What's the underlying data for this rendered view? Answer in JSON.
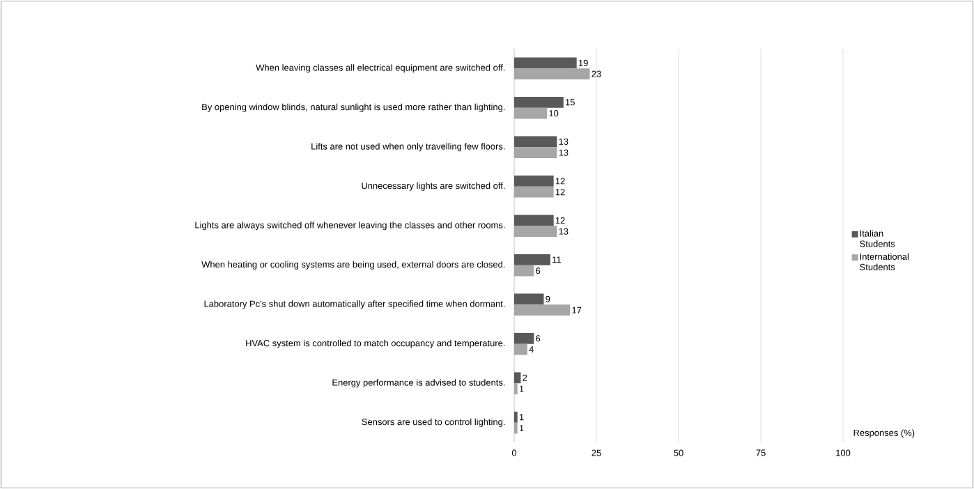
{
  "chart_data": {
    "type": "bar",
    "orientation": "horizontal",
    "xlabel": "Responses (%)",
    "categories": [
      "When leaving classes all electrical equipment are switched off.",
      "By opening window blinds, natural sunlight is used more rather than lighting.",
      "Lifts are not used when only travelling few floors.",
      "Unnecessary lights are switched off.",
      "Lights are always switched off whenever leaving the classes and other rooms.",
      "When heating or cooling systems are being used, external doors are closed.",
      "Laboratory Pc's shut down automatically after specified time when dormant.",
      "HVAC system is controlled to match occupancy and temperature.",
      "Energy performance is advised to students.",
      "Sensors are used to control lighting."
    ],
    "series": [
      {
        "name": "Italian Students",
        "color": "#595959",
        "values": [
          19,
          15,
          13,
          12,
          12,
          11,
          9,
          6,
          2,
          1
        ]
      },
      {
        "name": "International Students",
        "color": "#a6a6a6",
        "values": [
          23,
          10,
          13,
          12,
          13,
          6,
          17,
          4,
          1,
          1
        ]
      }
    ],
    "xlim": [
      0,
      100
    ],
    "xticks": [
      0,
      25,
      50,
      75,
      100
    ],
    "grid": "x",
    "legend": "right",
    "data_labels": true
  }
}
